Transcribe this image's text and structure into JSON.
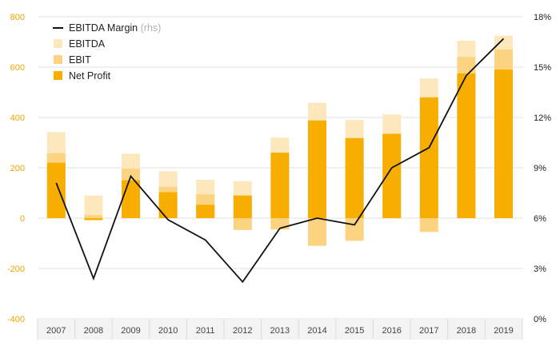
{
  "chart_data": {
    "type": "bar",
    "categories": [
      "2007",
      "2008",
      "2009",
      "2010",
      "2011",
      "2012",
      "2013",
      "2014",
      "2015",
      "2016",
      "2017",
      "2018",
      "2019"
    ],
    "series": [
      {
        "name": "EBITDA",
        "values": [
          342,
          90,
          256,
          186,
          152,
          147,
          320,
          458,
          390,
          412,
          555,
          705,
          725
        ]
      },
      {
        "name": "EBIT",
        "values": [
          258,
          12,
          196,
          124,
          95,
          -47,
          -45,
          -110,
          -90,
          335,
          -55,
          640,
          670
        ]
      },
      {
        "name": "Net Profit",
        "values": [
          220,
          -8,
          150,
          103,
          53,
          90,
          260,
          388,
          318,
          335,
          480,
          575,
          590
        ]
      },
      {
        "name": "EBITDA Margin",
        "values": [
          0.081,
          0.024,
          0.085,
          0.059,
          0.047,
          0.022,
          0.054,
          0.06,
          0.056,
          0.09,
          0.102,
          0.145,
          0.167
        ]
      }
    ],
    "legend": [
      {
        "label": "EBITDA Margin",
        "note": "(rhs)",
        "kind": "line",
        "color": "#111111"
      },
      {
        "label": "EBITDA",
        "kind": "bar",
        "color": "#fde8bd"
      },
      {
        "label": "EBIT",
        "kind": "bar",
        "color": "#fbd381"
      },
      {
        "label": "Net Profit",
        "kind": "bar",
        "color": "#f7ae00"
      }
    ],
    "legend_position": "top-left",
    "ylim": [
      -400,
      800
    ],
    "y_ticks": [
      "800",
      "600",
      "400",
      "200",
      "0",
      "-200",
      "-400"
    ],
    "y2lim": [
      0,
      0.18
    ],
    "y2_ticks": [
      "18%",
      "15%",
      "12%",
      "9%",
      "6%",
      "3%",
      "0%"
    ],
    "grid": "horizontal",
    "colors": {
      "left_axis": "#f0a500",
      "grid": "#e2e2e2",
      "line": "#111111"
    }
  }
}
